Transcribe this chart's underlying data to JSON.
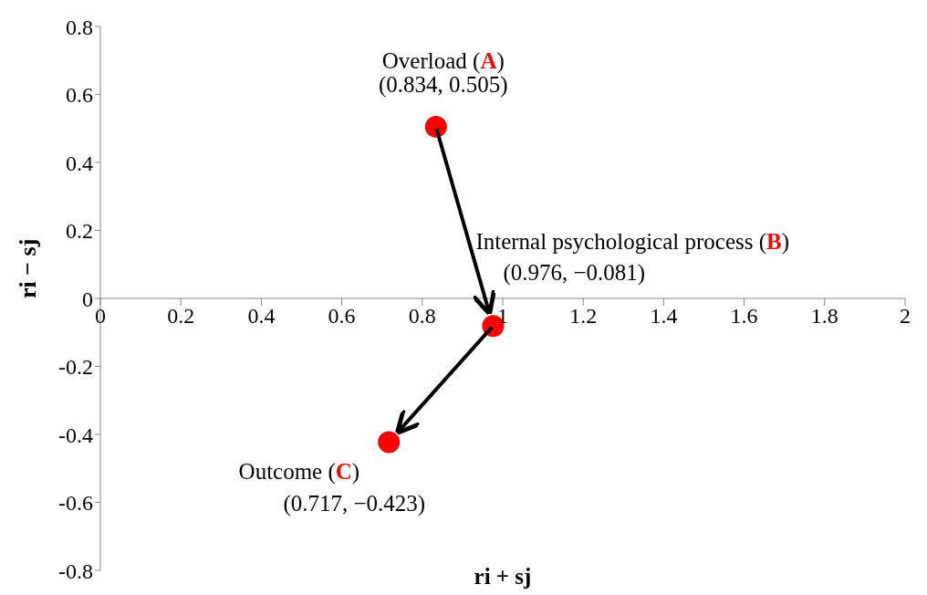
{
  "chart_data": {
    "type": "scatter",
    "xlabel": "ri + sj",
    "ylabel": "ri − sj",
    "x": [
      0.834,
      0.976,
      0.717
    ],
    "values": [
      0.505,
      -0.081,
      -0.423
    ],
    "color": "#ff0000",
    "marker": "circle",
    "xlim": [
      0,
      2
    ],
    "xticks": [
      0,
      0.2,
      0.4,
      0.6,
      0.8,
      1,
      1.2,
      1.4,
      1.6,
      1.8,
      2
    ],
    "ylim": [
      -0.8,
      0.8
    ],
    "yticks": [
      -0.8,
      -0.6,
      -0.4,
      -0.2,
      0,
      0.2,
      0.4,
      0.6,
      0.8
    ],
    "grid": false,
    "legend": false,
    "annotations": [
      "Overload (A)",
      {
        "text": "(0.834, 0.505)",
        "x": 0.834,
        "y": 0.505
      },
      "Internal psychological process (B)",
      {
        "text": "(0.976, −0.081)",
        "x": 0.976,
        "y": -0.081
      },
      "Outcome (C)",
      {
        "text": "(0.717, −0.423)",
        "x": 0.717,
        "y": -0.423
      }
    ]
  }
}
